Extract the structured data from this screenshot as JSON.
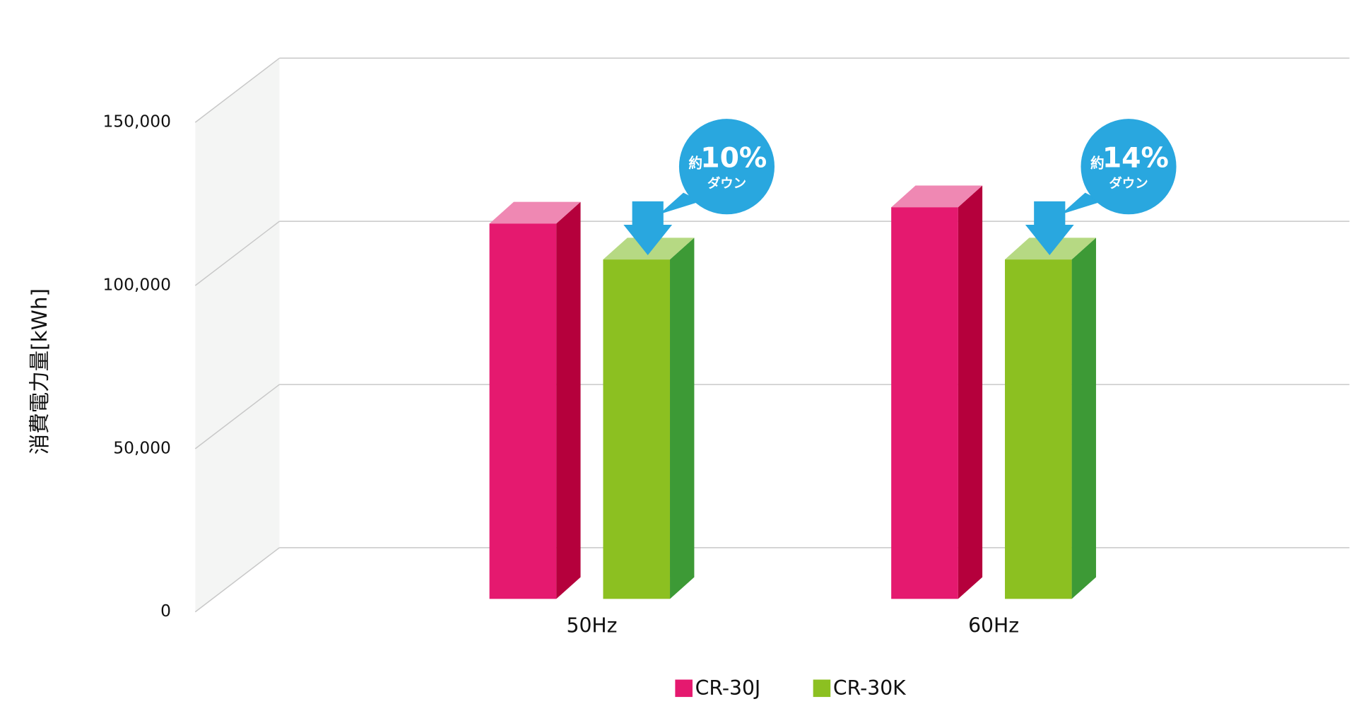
{
  "chart_data": {
    "type": "bar3d",
    "y_label": "消費電力量[kWh]",
    "categories": [
      "50Hz",
      "60Hz"
    ],
    "series": [
      {
        "name": "CR-30J",
        "color": "#e5196f",
        "values": [
          115000,
          120000
        ]
      },
      {
        "name": "CR-30K",
        "color": "#8cc021",
        "values": [
          104000,
          104000
        ]
      }
    ],
    "ylim": [
      0,
      150000
    ],
    "yticks": [
      0,
      {
        "value": 50000,
        "label": "50,000"
      },
      {
        "value": 100000,
        "label": "100,000"
      },
      {
        "value": 150000,
        "label": "150,000"
      }
    ],
    "grid": true,
    "annotations": [
      {
        "prefix": "約",
        "percent": "10%",
        "text": "ダウン"
      },
      {
        "prefix": "約",
        "percent": "14%",
        "text": "ダウン"
      }
    ],
    "legend": "bottom"
  }
}
